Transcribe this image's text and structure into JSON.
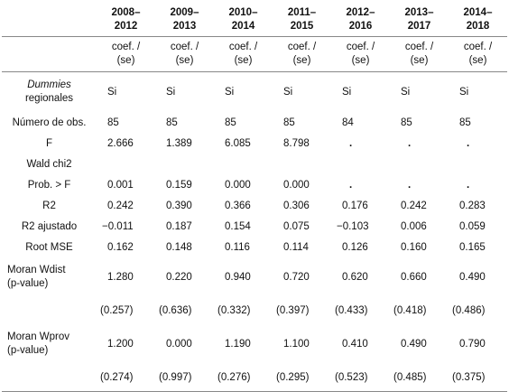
{
  "columns": [
    "2008–\n2012",
    "2009–\n2013",
    "2010–\n2014",
    "2011–\n2015",
    "2012–\n2016",
    "2013–\n2017",
    "2014–\n2018"
  ],
  "coef_header": [
    "coef. /\n(se)",
    "coef. /\n(se)",
    "coef. /\n(se)",
    "coef. /\n(se)",
    "coef. /\n(se)",
    "coef. /\n(se)",
    "coef. /\n(se)"
  ],
  "rows": {
    "dummies": {
      "label_line1": "Dummies",
      "label_line2": "regionales",
      "values": [
        "Si",
        "Si",
        "Si",
        "Si",
        "Si",
        "Si",
        "Si"
      ]
    },
    "nobs": {
      "label": "Número de obs.",
      "values": [
        "85",
        "85",
        "85",
        "85",
        "84",
        "85",
        "85"
      ]
    },
    "f": {
      "label": "F",
      "values": [
        "2.666",
        "1.389",
        "6.085",
        "8.798",
        ".",
        ".",
        "."
      ]
    },
    "wald": {
      "label": "Wald chi2",
      "values": [
        "",
        "",
        "",
        "",
        "",
        "",
        ""
      ]
    },
    "probf": {
      "label": "Prob. > F",
      "values": [
        "0.001",
        "0.159",
        "0.000",
        "0.000",
        ".",
        ".",
        "."
      ]
    },
    "r2": {
      "label": "R2",
      "values": [
        "0.242",
        "0.390",
        "0.366",
        "0.306",
        "0.176",
        "0.242",
        "0.283"
      ]
    },
    "r2adj": {
      "label": "R2 ajustado",
      "values": [
        "−0.011",
        "0.187",
        "0.154",
        "0.075",
        "−0.103",
        "0.006",
        "0.059"
      ]
    },
    "rootmse": {
      "label": "Root MSE",
      "values": [
        "0.162",
        "0.148",
        "0.116",
        "0.114",
        "0.126",
        "0.160",
        "0.165"
      ]
    },
    "moran_wdist": {
      "label_line1": "Moran Wdist",
      "label_line2": "(p-value)",
      "values": [
        "1.280",
        "0.220",
        "0.940",
        "0.720",
        "0.620",
        "0.660",
        "0.490"
      ],
      "pvalues": [
        "(0.257)",
        "(0.636)",
        "(0.332)",
        "(0.397)",
        "(0.433)",
        "(0.418)",
        "(0.486)"
      ]
    },
    "moran_wprov": {
      "label_line1": "Moran Wprov",
      "label_line2": "(p-value)",
      "values": [
        "1.200",
        "0.000",
        "1.190",
        "1.100",
        "0.410",
        "0.490",
        "0.790"
      ],
      "pvalues": [
        "(0.274)",
        "(0.997)",
        "(0.276)",
        "(0.295)",
        "(0.523)",
        "(0.485)",
        "(0.375)"
      ]
    }
  }
}
